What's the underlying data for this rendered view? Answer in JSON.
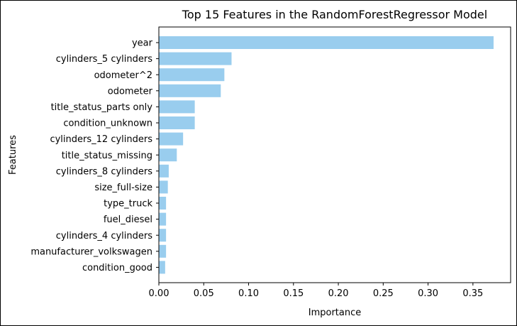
{
  "chart_data": {
    "type": "bar",
    "orientation": "horizontal",
    "title": "Top 15 Features in the RandomForestRegressor Model",
    "xlabel": "Importance",
    "ylabel": "Features",
    "categories": [
      "year",
      "cylinders_5 cylinders",
      "odometer^2",
      "odometer",
      "title_status_parts only",
      "condition_unknown",
      "cylinders_12 cylinders",
      "title_status_missing",
      "cylinders_8 cylinders",
      "size_full-size",
      "type_truck",
      "fuel_diesel",
      "cylinders_4 cylinders",
      "manufacturer_volkswagen",
      "condition_good"
    ],
    "values": [
      0.373,
      0.081,
      0.073,
      0.069,
      0.04,
      0.04,
      0.027,
      0.02,
      0.011,
      0.01,
      0.008,
      0.008,
      0.008,
      0.008,
      0.007
    ],
    "xlim": [
      0,
      0.392
    ],
    "xticks": [
      0.0,
      0.05,
      0.1,
      0.15,
      0.2,
      0.25,
      0.3,
      0.35
    ],
    "xtick_labels": [
      "0.00",
      "0.05",
      "0.10",
      "0.15",
      "0.20",
      "0.25",
      "0.30",
      "0.35"
    ],
    "bar_color": "#99cdee",
    "grid": false,
    "legend": "none"
  }
}
